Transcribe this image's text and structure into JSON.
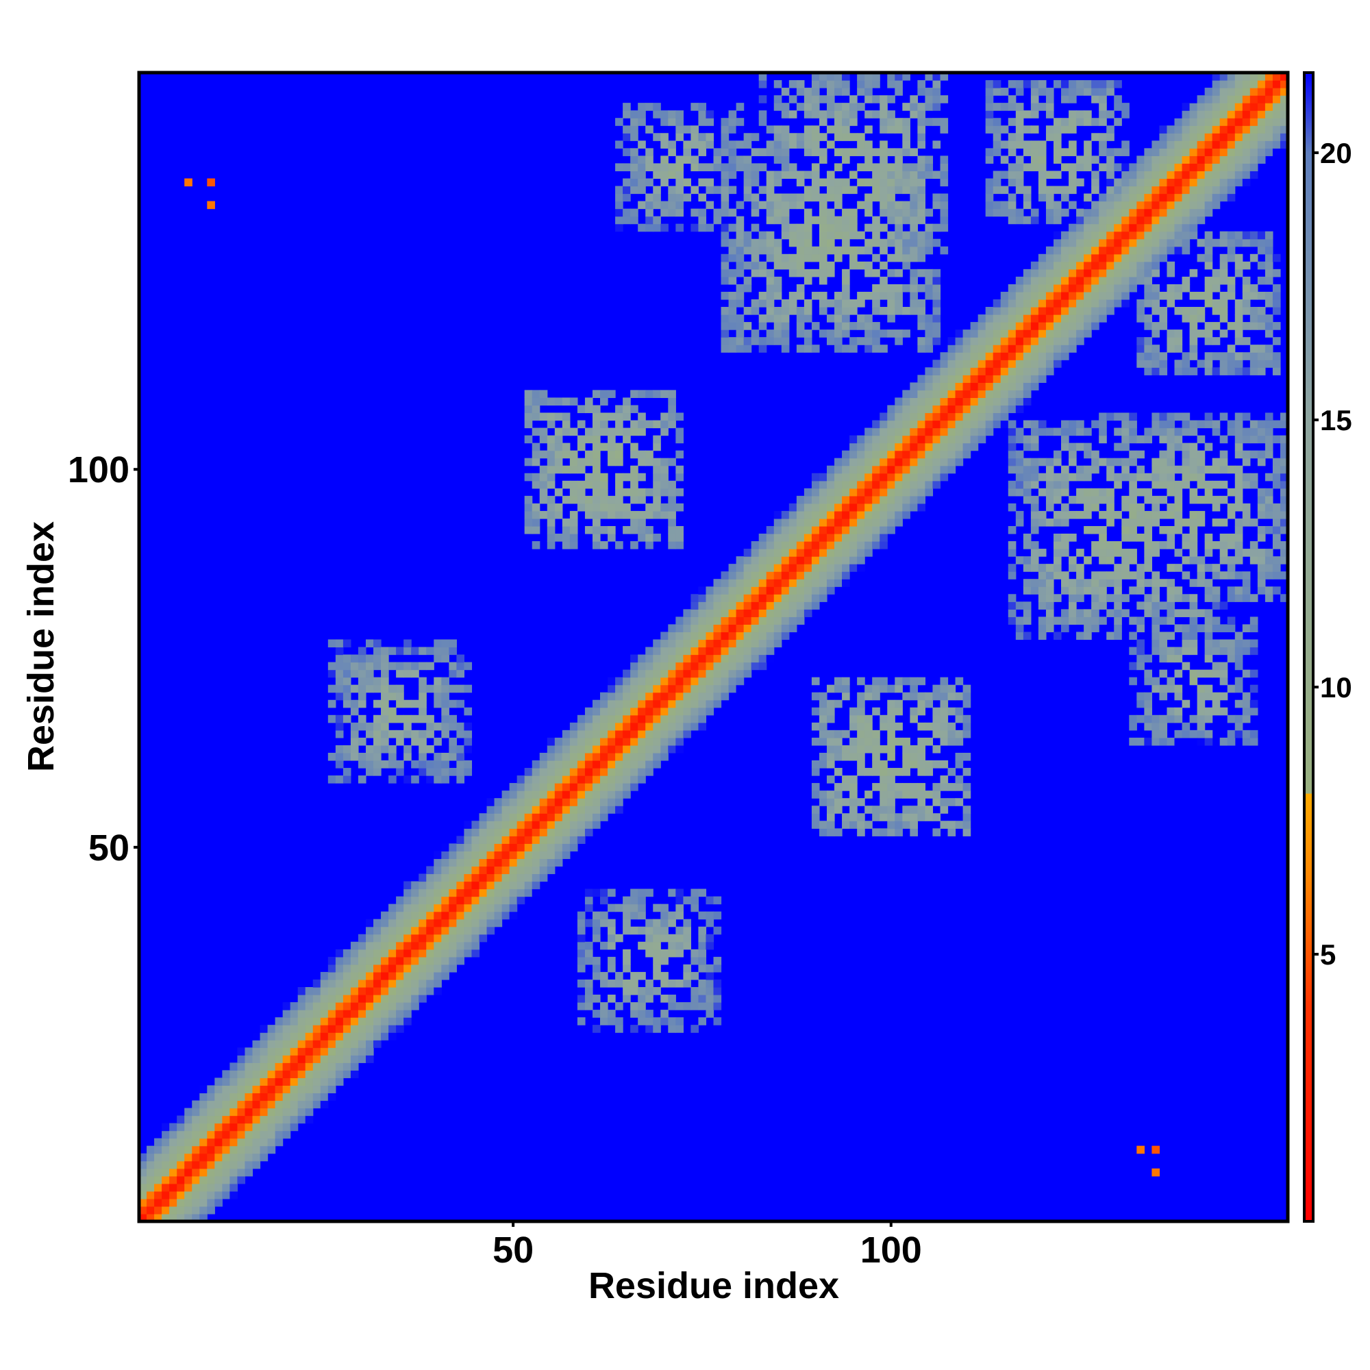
{
  "chart_data": {
    "type": "heatmap",
    "title": "",
    "xlabel": "Residue index",
    "ylabel": "Residue index",
    "x_range": [
      1,
      152
    ],
    "y_range": [
      1,
      152
    ],
    "x_ticks": [
      50,
      100
    ],
    "y_ticks": [
      50,
      100
    ],
    "colorbar": {
      "range": [
        0,
        21.5
      ],
      "ticks": [
        5,
        10,
        15,
        20
      ],
      "stops": [
        {
          "value": 0,
          "color": "#ff0000"
        },
        {
          "value": 4,
          "color": "#ff3300"
        },
        {
          "value": 6.5,
          "color": "#ff8800"
        },
        {
          "value": 8,
          "color": "#ffaa00"
        },
        {
          "value": 8.01,
          "color": "#99b080"
        },
        {
          "value": 15,
          "color": "#8fa6a0"
        },
        {
          "value": 20,
          "color": "#5f7fbe"
        },
        {
          "value": 21.5,
          "color": "#0000ff"
        }
      ]
    },
    "background_color": "#0000ff",
    "diagonal_band": {
      "contact_distance_near": 1.5,
      "decay_per_residue": 2.2
    },
    "contact_patches": [
      {
        "x_center": 62,
        "y_center": 100,
        "half_width": 10,
        "min_distance": 10
      },
      {
        "x_center": 100,
        "y_center": 62,
        "half_width": 10,
        "min_distance": 10
      },
      {
        "x_center": 92,
        "y_center": 130,
        "half_width": 14,
        "min_distance": 11
      },
      {
        "x_center": 130,
        "y_center": 92,
        "half_width": 14,
        "min_distance": 11
      },
      {
        "x_center": 140,
        "y_center": 95,
        "half_width": 12,
        "min_distance": 11
      },
      {
        "x_center": 95,
        "y_center": 140,
        "half_width": 12,
        "min_distance": 11
      },
      {
        "x_center": 72,
        "y_center": 140,
        "half_width": 8,
        "min_distance": 12
      },
      {
        "x_center": 140,
        "y_center": 72,
        "half_width": 8,
        "min_distance": 12
      },
      {
        "x_center": 35,
        "y_center": 68,
        "half_width": 9,
        "min_distance": 12
      },
      {
        "x_center": 68,
        "y_center": 35,
        "half_width": 9,
        "min_distance": 12
      },
      {
        "x_center": 142,
        "y_center": 122,
        "half_width": 9,
        "min_distance": 11
      },
      {
        "x_center": 122,
        "y_center": 142,
        "half_width": 9,
        "min_distance": 11
      }
    ],
    "isolated_contacts": [
      {
        "x": 7,
        "y": 138,
        "value": 6
      },
      {
        "x": 10,
        "y": 138,
        "value": 5
      },
      {
        "x": 10,
        "y": 135,
        "value": 6
      },
      {
        "x": 133,
        "y": 10,
        "value": 6
      },
      {
        "x": 135,
        "y": 10,
        "value": 5
      },
      {
        "x": 135,
        "y": 7,
        "value": 6
      }
    ]
  }
}
